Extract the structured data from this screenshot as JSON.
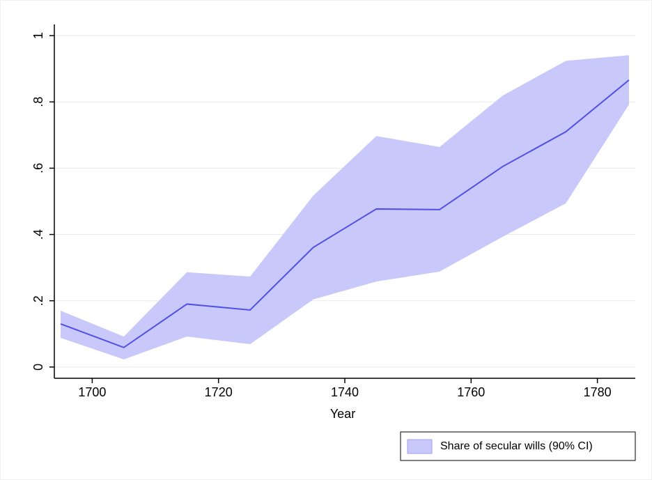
{
  "chart_data": {
    "type": "line-ci",
    "x_label": "Year",
    "x": [
      1695,
      1705,
      1715,
      1725,
      1735,
      1745,
      1755,
      1765,
      1775,
      1785
    ],
    "series": [
      {
        "name": "Share of secular wills (90% CI)",
        "color": "#c8c8fa",
        "line_color": "#5050e6",
        "values": [
          0.13,
          0.059,
          0.19,
          0.172,
          0.361,
          0.477,
          0.475,
          0.605,
          0.71,
          0.866
        ],
        "upper": [
          0.17,
          0.092,
          0.286,
          0.273,
          0.517,
          0.697,
          0.664,
          0.819,
          0.924,
          0.941
        ],
        "lower": [
          0.088,
          0.023,
          0.092,
          0.069,
          0.204,
          0.258,
          0.288,
          0.393,
          0.494,
          0.792
        ]
      }
    ],
    "xlim": [
      1694,
      1786
    ],
    "xticks": [
      1700,
      1720,
      1740,
      1760,
      1780
    ],
    "ylim": [
      -0.034,
      1.034
    ],
    "yticks": [
      0,
      {
        "value": 0.2,
        "label": ".2"
      },
      {
        "value": 0.4,
        "label": ".4"
      },
      {
        "value": 0.6,
        "label": ".6"
      },
      {
        "value": 0.8,
        "label": ".8"
      },
      1
    ],
    "grid": true,
    "legend": "bottom-right"
  }
}
